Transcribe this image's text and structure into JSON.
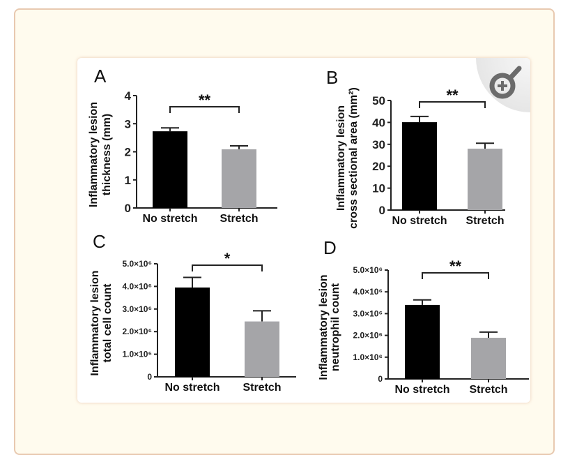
{
  "figure": {
    "zoom_button_label": "Zoom figure",
    "colors": {
      "no_stretch": "#000000",
      "stretch": "#a5a5a8",
      "page_bg": "#fffbee",
      "border": "#e8c9b0",
      "zoom_icon": "#6b6b6b"
    }
  },
  "chart_data": [
    {
      "panel": "A",
      "type": "bar",
      "categories": [
        "No stretch",
        "Stretch"
      ],
      "values": [
        2.73,
        2.09
      ],
      "errors": [
        0.12,
        0.12
      ],
      "ylabel": [
        "Inflammatory lesion",
        "thickness (mm)"
      ],
      "ylim": [
        0,
        4
      ],
      "yticks": [
        0,
        1,
        2,
        3,
        4
      ],
      "ytick_labels": [
        "0",
        "1",
        "2",
        "3",
        "4"
      ],
      "significance": "**"
    },
    {
      "panel": "B",
      "type": "bar",
      "categories": [
        "No stretch",
        "Stretch"
      ],
      "values": [
        40.1,
        28.0
      ],
      "errors": [
        2.6,
        2.5
      ],
      "ylabel": [
        "Inflammatory lesion",
        "cross sectional area (mm²)"
      ],
      "ylim": [
        0,
        50
      ],
      "yticks": [
        0,
        10,
        20,
        30,
        40,
        50
      ],
      "ytick_labels": [
        "0",
        "10",
        "20",
        "30",
        "40",
        "50"
      ],
      "significance": "**"
    },
    {
      "panel": "C",
      "type": "bar",
      "categories": [
        "No stretch",
        "Stretch"
      ],
      "values": [
        3950000,
        2450000
      ],
      "errors": [
        450000,
        470000
      ],
      "ylabel": [
        "Inflammatory lesion",
        "total cell count"
      ],
      "ylim": [
        0,
        5000000
      ],
      "yticks": [
        0,
        1000000,
        2000000,
        3000000,
        4000000,
        5000000
      ],
      "ytick_labels": [
        "0",
        "1.0×10⁶",
        "2.0×10⁶",
        "3.0×10⁶",
        "4.0×10⁶",
        "5.0×10⁶"
      ],
      "significance": "*"
    },
    {
      "panel": "D",
      "type": "bar",
      "categories": [
        "No stretch",
        "Stretch"
      ],
      "values": [
        3400000,
        1890000
      ],
      "errors": [
        230000,
        260000
      ],
      "ylabel": [
        "Inflammatory lesion",
        "neutrophil count"
      ],
      "ylim": [
        0,
        5000000
      ],
      "yticks": [
        0,
        1000000,
        2000000,
        3000000,
        4000000,
        5000000
      ],
      "ytick_labels": [
        "0",
        "1.0×10⁶",
        "2.0×10⁶",
        "3.0×10⁶",
        "4.0×10⁶",
        "5.0×10⁶"
      ],
      "significance": "**"
    }
  ]
}
